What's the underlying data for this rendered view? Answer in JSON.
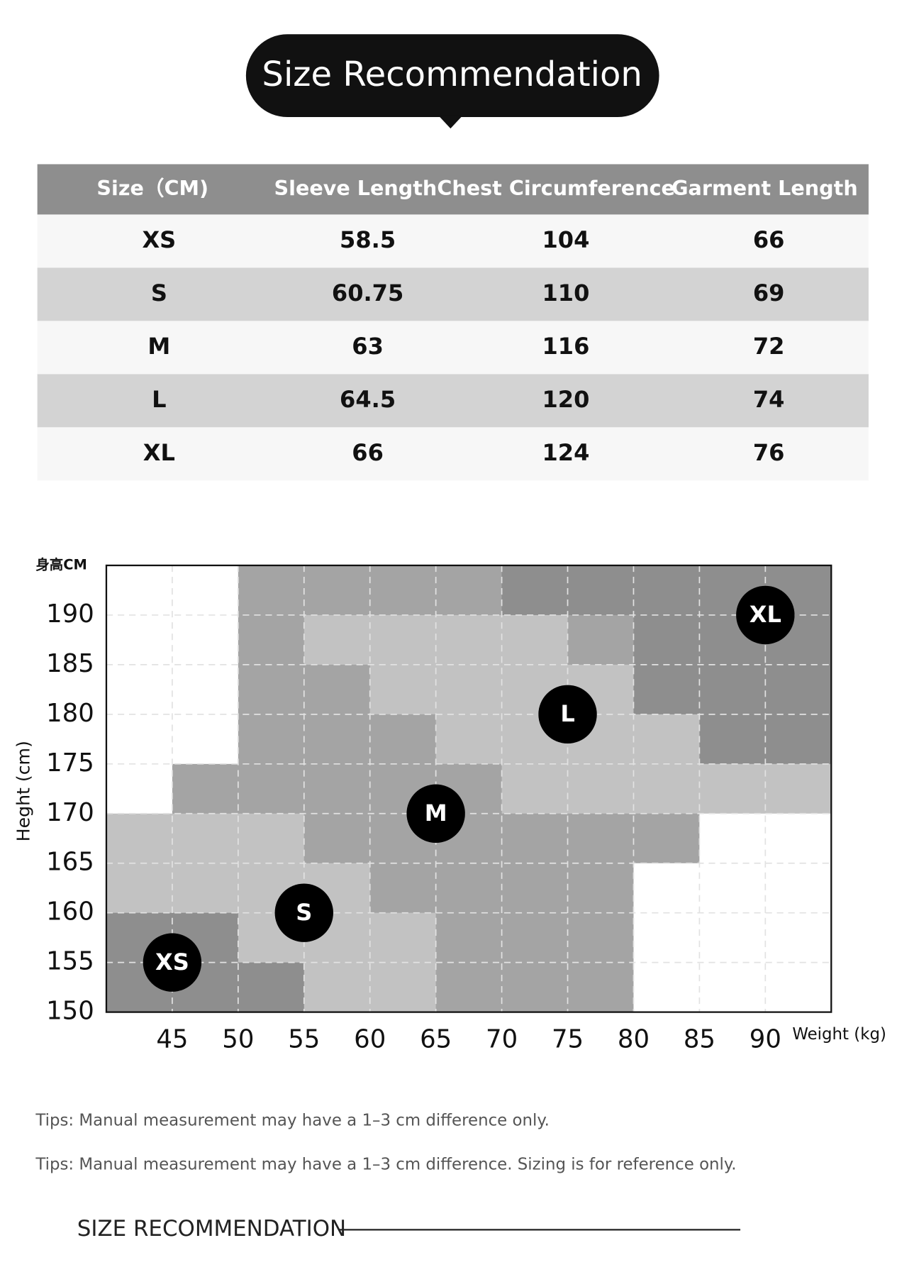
{
  "header": {
    "title": "Size Recommendation"
  },
  "table": {
    "columns": [
      "Size（CM)",
      "Sleeve Length",
      "Chest Circumference",
      "Garment Length"
    ],
    "rows": [
      [
        "XS",
        58.5,
        104,
        66
      ],
      [
        "S",
        60.75,
        110,
        69
      ],
      [
        "M",
        63,
        116,
        72
      ],
      [
        "L",
        64.5,
        120,
        74
      ],
      [
        "XL",
        66,
        124,
        76
      ]
    ]
  },
  "chart_data": {
    "type": "scatter",
    "y_unit_label": "身高CM",
    "y_axis_title": "Heght (cm)",
    "x_axis_title": "Weight (kg)",
    "x": [
      45,
      55,
      65,
      75,
      90
    ],
    "values": [
      155,
      160,
      170,
      180,
      190
    ],
    "point_labels": [
      "XS",
      "S",
      "M",
      "L",
      "XL"
    ],
    "color": "#000000",
    "xlim": [
      40,
      95
    ],
    "ylim": [
      150,
      195
    ],
    "xticks": [
      45,
      50,
      55,
      60,
      65,
      70,
      75,
      80,
      85,
      90
    ],
    "yticks": [
      150,
      155,
      160,
      165,
      170,
      175,
      180,
      185,
      190
    ],
    "grid": true
  },
  "tips": [
    "Tips: Manual measurement may have a 1–3 cm difference only.",
    "Tips: Manual measurement may have a 1–3 cm difference. Sizing is for reference only."
  ],
  "footer": "SIZE RECOMMENDATION"
}
